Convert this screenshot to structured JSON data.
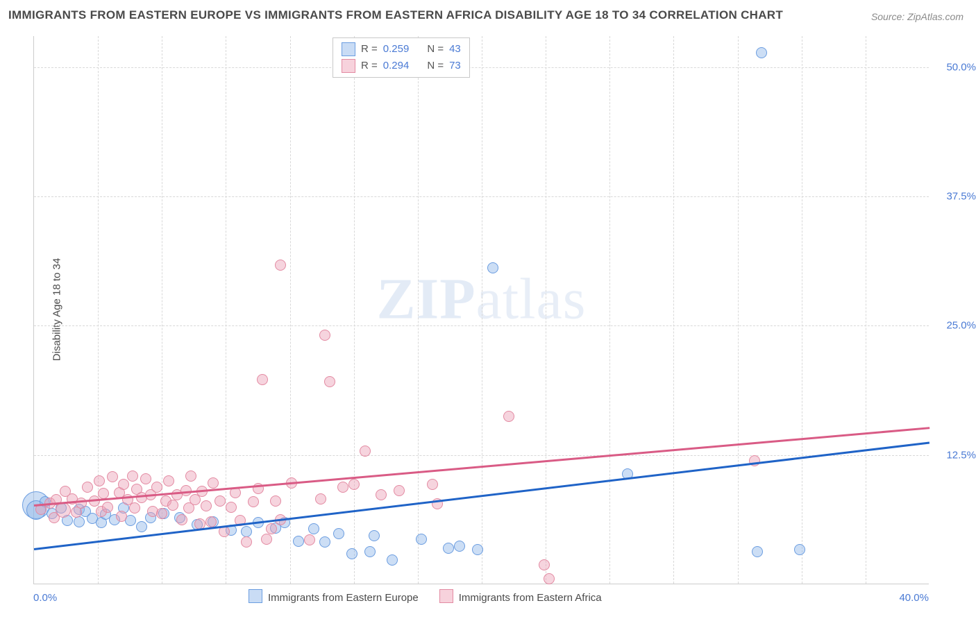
{
  "title": "IMMIGRANTS FROM EASTERN EUROPE VS IMMIGRANTS FROM EASTERN AFRICA DISABILITY AGE 18 TO 34 CORRELATION CHART",
  "source": "Source: ZipAtlas.com",
  "watermark": "ZIPatlas",
  "ylabel": "Disability Age 18 to 34",
  "axes": {
    "xlim": [
      0,
      40
    ],
    "ylim": [
      0,
      53
    ],
    "xticks": [
      {
        "v": 0,
        "label": "0.0%"
      },
      {
        "v": 40,
        "label": "40.0%"
      }
    ],
    "yticks": [
      {
        "v": 12.5,
        "label": "12.5%"
      },
      {
        "v": 25.0,
        "label": "25.0%"
      },
      {
        "v": 37.5,
        "label": "37.5%"
      },
      {
        "v": 50.0,
        "label": "50.0%"
      }
    ],
    "vgrid_count": 13,
    "grid_color": "#d8d8d8",
    "axis_color": "#cccccc"
  },
  "legend_top": [
    {
      "color_fill": "#c9dcf5",
      "color_stroke": "#6b9de0",
      "r_label": "R =",
      "r_value": "0.259",
      "n_label": "N =",
      "n_value": "43"
    },
    {
      "color_fill": "#f7d2dc",
      "color_stroke": "#e38aa2",
      "r_label": "R =",
      "r_value": "0.294",
      "n_label": "N =",
      "n_value": "73"
    }
  ],
  "legend_bottom": [
    {
      "color_fill": "#c9dcf5",
      "color_stroke": "#6b9de0",
      "label": "Immigrants from Eastern Europe"
    },
    {
      "color_fill": "#f7d2dc",
      "color_stroke": "#e38aa2",
      "label": "Immigrants from Eastern Africa"
    }
  ],
  "series": [
    {
      "name": "europe",
      "marker_fill": "rgba(142,181,232,0.45)",
      "marker_stroke": "#6b9de0",
      "marker_r": 8,
      "line_color": "#1f63c7",
      "line": {
        "x1": 0,
        "y1": 3.5,
        "x2": 40,
        "y2": 13.8
      },
      "points": [
        {
          "x": 0.1,
          "y": 7.6,
          "r": 20
        },
        {
          "x": 0.1,
          "y": 7.1,
          "r": 14
        },
        {
          "x": 0.5,
          "y": 7.9
        },
        {
          "x": 0.8,
          "y": 6.8
        },
        {
          "x": 1.2,
          "y": 7.3
        },
        {
          "x": 1.5,
          "y": 6.1
        },
        {
          "x": 2.0,
          "y": 7.2
        },
        {
          "x": 2.0,
          "y": 6.0
        },
        {
          "x": 2.3,
          "y": 7.0
        },
        {
          "x": 2.6,
          "y": 6.3
        },
        {
          "x": 3.0,
          "y": 5.9
        },
        {
          "x": 3.2,
          "y": 6.7
        },
        {
          "x": 3.6,
          "y": 6.2
        },
        {
          "x": 4.0,
          "y": 7.3
        },
        {
          "x": 4.3,
          "y": 6.1
        },
        {
          "x": 4.8,
          "y": 5.5
        },
        {
          "x": 5.2,
          "y": 6.4
        },
        {
          "x": 5.8,
          "y": 6.8
        },
        {
          "x": 6.5,
          "y": 6.4
        },
        {
          "x": 7.3,
          "y": 5.7
        },
        {
          "x": 8.0,
          "y": 6.0
        },
        {
          "x": 8.8,
          "y": 5.2
        },
        {
          "x": 9.5,
          "y": 5.0
        },
        {
          "x": 10.0,
          "y": 5.9
        },
        {
          "x": 10.8,
          "y": 5.4
        },
        {
          "x": 11.2,
          "y": 5.9
        },
        {
          "x": 11.8,
          "y": 4.1
        },
        {
          "x": 12.5,
          "y": 5.3
        },
        {
          "x": 13.0,
          "y": 4.0
        },
        {
          "x": 13.6,
          "y": 4.8
        },
        {
          "x": 14.2,
          "y": 2.9
        },
        {
          "x": 15.0,
          "y": 3.1
        },
        {
          "x": 15.2,
          "y": 4.6
        },
        {
          "x": 16.0,
          "y": 2.3
        },
        {
          "x": 17.3,
          "y": 4.3
        },
        {
          "x": 18.5,
          "y": 3.4
        },
        {
          "x": 19.0,
          "y": 3.6
        },
        {
          "x": 19.8,
          "y": 3.3
        },
        {
          "x": 20.5,
          "y": 30.5
        },
        {
          "x": 26.5,
          "y": 10.6
        },
        {
          "x": 32.5,
          "y": 51.3
        },
        {
          "x": 32.3,
          "y": 3.1
        },
        {
          "x": 34.2,
          "y": 3.3
        }
      ]
    },
    {
      "name": "africa",
      "marker_fill": "rgba(236,160,182,0.45)",
      "marker_stroke": "#e38aa2",
      "marker_r": 8,
      "line_color": "#d95b85",
      "line": {
        "x1": 0,
        "y1": 7.7,
        "x2": 40,
        "y2": 15.2
      },
      "points": [
        {
          "x": 0.3,
          "y": 7.2
        },
        {
          "x": 0.7,
          "y": 7.8
        },
        {
          "x": 0.9,
          "y": 6.4
        },
        {
          "x": 1.0,
          "y": 8.1
        },
        {
          "x": 1.3,
          "y": 7.1,
          "r": 11
        },
        {
          "x": 1.4,
          "y": 8.9
        },
        {
          "x": 1.7,
          "y": 8.2
        },
        {
          "x": 1.9,
          "y": 6.9
        },
        {
          "x": 2.1,
          "y": 7.8
        },
        {
          "x": 2.4,
          "y": 9.3
        },
        {
          "x": 2.7,
          "y": 8.0
        },
        {
          "x": 2.9,
          "y": 9.9
        },
        {
          "x": 3.0,
          "y": 7.0
        },
        {
          "x": 3.1,
          "y": 8.7
        },
        {
          "x": 3.3,
          "y": 7.4
        },
        {
          "x": 3.5,
          "y": 10.3
        },
        {
          "x": 3.8,
          "y": 8.8
        },
        {
          "x": 3.9,
          "y": 6.5
        },
        {
          "x": 4.0,
          "y": 9.6
        },
        {
          "x": 4.2,
          "y": 8.1
        },
        {
          "x": 4.4,
          "y": 10.4
        },
        {
          "x": 4.5,
          "y": 7.3
        },
        {
          "x": 4.6,
          "y": 9.1
        },
        {
          "x": 4.8,
          "y": 8.3
        },
        {
          "x": 5.0,
          "y": 10.1
        },
        {
          "x": 5.2,
          "y": 8.6
        },
        {
          "x": 5.3,
          "y": 7.0
        },
        {
          "x": 5.5,
          "y": 9.3
        },
        {
          "x": 5.7,
          "y": 6.8
        },
        {
          "x": 5.9,
          "y": 8.0
        },
        {
          "x": 6.0,
          "y": 9.9
        },
        {
          "x": 6.2,
          "y": 7.6
        },
        {
          "x": 6.4,
          "y": 8.6
        },
        {
          "x": 6.6,
          "y": 6.2
        },
        {
          "x": 6.8,
          "y": 9.0
        },
        {
          "x": 6.9,
          "y": 7.3
        },
        {
          "x": 7.0,
          "y": 10.4
        },
        {
          "x": 7.2,
          "y": 8.1
        },
        {
          "x": 7.4,
          "y": 5.8
        },
        {
          "x": 7.5,
          "y": 8.9
        },
        {
          "x": 7.7,
          "y": 7.5
        },
        {
          "x": 7.9,
          "y": 6.0
        },
        {
          "x": 8.0,
          "y": 9.7
        },
        {
          "x": 8.3,
          "y": 8.0
        },
        {
          "x": 8.5,
          "y": 5.0
        },
        {
          "x": 8.8,
          "y": 7.4
        },
        {
          "x": 9.0,
          "y": 8.8
        },
        {
          "x": 9.2,
          "y": 6.1
        },
        {
          "x": 9.5,
          "y": 4.0
        },
        {
          "x": 9.8,
          "y": 7.9
        },
        {
          "x": 10.0,
          "y": 9.2
        },
        {
          "x": 10.2,
          "y": 19.7
        },
        {
          "x": 10.4,
          "y": 4.3
        },
        {
          "x": 10.6,
          "y": 5.3
        },
        {
          "x": 10.8,
          "y": 8.0
        },
        {
          "x": 11.0,
          "y": 30.8
        },
        {
          "x": 11.0,
          "y": 6.2
        },
        {
          "x": 11.5,
          "y": 9.7
        },
        {
          "x": 12.3,
          "y": 4.2
        },
        {
          "x": 12.8,
          "y": 8.2
        },
        {
          "x": 13.0,
          "y": 24.0
        },
        {
          "x": 13.2,
          "y": 19.5
        },
        {
          "x": 13.8,
          "y": 9.3
        },
        {
          "x": 14.3,
          "y": 9.6
        },
        {
          "x": 14.8,
          "y": 12.8
        },
        {
          "x": 15.5,
          "y": 8.6
        },
        {
          "x": 16.3,
          "y": 9.0
        },
        {
          "x": 17.8,
          "y": 9.6
        },
        {
          "x": 18.0,
          "y": 7.7
        },
        {
          "x": 21.2,
          "y": 16.2
        },
        {
          "x": 22.8,
          "y": 1.8
        },
        {
          "x": 23.0,
          "y": 0.5
        },
        {
          "x": 32.2,
          "y": 11.9
        }
      ]
    }
  ]
}
